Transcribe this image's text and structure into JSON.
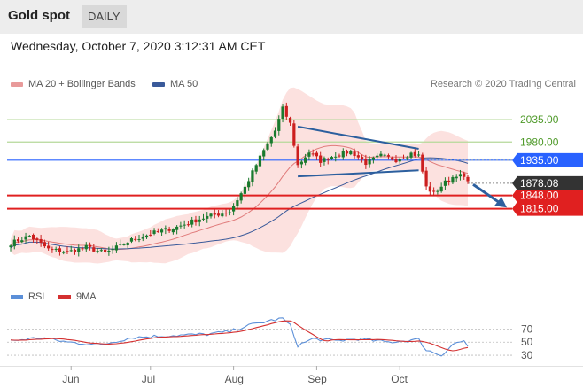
{
  "header": {
    "title": "Gold spot",
    "period": "DAILY"
  },
  "date_text": "Wednesday, October 7, 2020 3:12:31 AM CET",
  "legend": {
    "bollinger": "MA 20 + Bollinger Bands",
    "ma50": "MA 50"
  },
  "credit": "Research © 2020 Trading Central",
  "rsi_legend": {
    "rsi": "RSI",
    "ma9": "9MA"
  },
  "colors": {
    "up": "#1a7a2e",
    "down": "#cc1f1f",
    "band": "#f9c9c4",
    "ma50": "#3a5a9a",
    "ma20": "#e07b7b",
    "red_level": "#e02020",
    "blue_level": "#2962ff",
    "green_level": "#b5d89a",
    "arrow": "#2c5f9e",
    "rsi": "#5b8fd8",
    "rsi_ma": "#d43030",
    "price_tag": "#333333"
  },
  "chart_data": [
    {
      "type": "candlestick",
      "x_ticks": [
        "Jun",
        "Jul",
        "Aug",
        "Sep",
        "Oct"
      ],
      "ylim": [
        1648,
        2090
      ],
      "levels": [
        {
          "value": 2035.0,
          "label": "2035.00",
          "kind": "resistance"
        },
        {
          "value": 1980.0,
          "label": "1980.00",
          "kind": "resistance"
        },
        {
          "value": 1935.0,
          "label": "1935.00",
          "kind": "pivot"
        },
        {
          "value": 1848.0,
          "label": "1848.00",
          "kind": "support"
        },
        {
          "value": 1815.0,
          "label": "1815.00",
          "kind": "support"
        }
      ],
      "last_price": {
        "value": 1878.08,
        "label": "1878.08"
      },
      "trend_arrow": {
        "from": 1875,
        "to": 1818
      },
      "triangle": {
        "upper_start": 2018,
        "upper_end": 1963,
        "lower_start": 1895,
        "lower_end": 1910
      },
      "key_points": [
        {
          "t": 0,
          "close": 1730
        },
        {
          "t": 5,
          "close": 1748
        },
        {
          "t": 10,
          "close": 1715
        },
        {
          "t": 15,
          "close": 1708
        },
        {
          "t": 20,
          "close": 1720
        },
        {
          "t": 25,
          "close": 1705
        },
        {
          "t": 32,
          "close": 1738
        },
        {
          "t": 38,
          "close": 1756
        },
        {
          "t": 44,
          "close": 1770
        },
        {
          "t": 50,
          "close": 1790
        },
        {
          "t": 54,
          "close": 1800
        },
        {
          "t": 58,
          "close": 1808
        },
        {
          "t": 62,
          "close": 1868
        },
        {
          "t": 66,
          "close": 1942
        },
        {
          "t": 70,
          "close": 2008
        },
        {
          "t": 72,
          "close": 2062
        },
        {
          "t": 74,
          "close": 2025
        },
        {
          "t": 76,
          "close": 1922
        },
        {
          "t": 79,
          "close": 1955
        },
        {
          "t": 82,
          "close": 1933
        },
        {
          "t": 86,
          "close": 1948
        },
        {
          "t": 90,
          "close": 1957
        },
        {
          "t": 94,
          "close": 1928
        },
        {
          "t": 98,
          "close": 1946
        },
        {
          "t": 102,
          "close": 1936
        },
        {
          "t": 106,
          "close": 1952
        },
        {
          "t": 108,
          "close": 1946
        },
        {
          "t": 110,
          "close": 1868
        },
        {
          "t": 112,
          "close": 1853
        },
        {
          "t": 115,
          "close": 1880
        },
        {
          "t": 118,
          "close": 1900
        },
        {
          "t": 120,
          "close": 1892
        },
        {
          "t": 121,
          "close": 1878
        }
      ]
    },
    {
      "type": "line",
      "name": "RSI",
      "x_ticks": [
        "Jun",
        "Jul",
        "Aug",
        "Sep",
        "Oct"
      ],
      "ylim": [
        18,
        88
      ],
      "y_ticks": [
        "70",
        "50",
        "30"
      ],
      "levels": [
        70,
        50,
        30
      ],
      "key_points": [
        {
          "t": 0,
          "rsi": 52
        },
        {
          "t": 8,
          "rsi": 57
        },
        {
          "t": 15,
          "rsi": 50
        },
        {
          "t": 24,
          "rsi": 46
        },
        {
          "t": 32,
          "rsi": 57
        },
        {
          "t": 42,
          "rsi": 60
        },
        {
          "t": 52,
          "rsi": 62
        },
        {
          "t": 58,
          "rsi": 66
        },
        {
          "t": 62,
          "rsi": 74
        },
        {
          "t": 68,
          "rsi": 82
        },
        {
          "t": 72,
          "rsi": 86
        },
        {
          "t": 74,
          "rsi": 75
        },
        {
          "t": 76,
          "rsi": 45
        },
        {
          "t": 80,
          "rsi": 55
        },
        {
          "t": 86,
          "rsi": 52
        },
        {
          "t": 92,
          "rsi": 55
        },
        {
          "t": 100,
          "rsi": 50
        },
        {
          "t": 108,
          "rsi": 54
        },
        {
          "t": 110,
          "rsi": 38
        },
        {
          "t": 114,
          "rsi": 30
        },
        {
          "t": 117,
          "rsi": 47
        },
        {
          "t": 120,
          "rsi": 52
        },
        {
          "t": 121,
          "rsi": 44
        }
      ]
    }
  ]
}
